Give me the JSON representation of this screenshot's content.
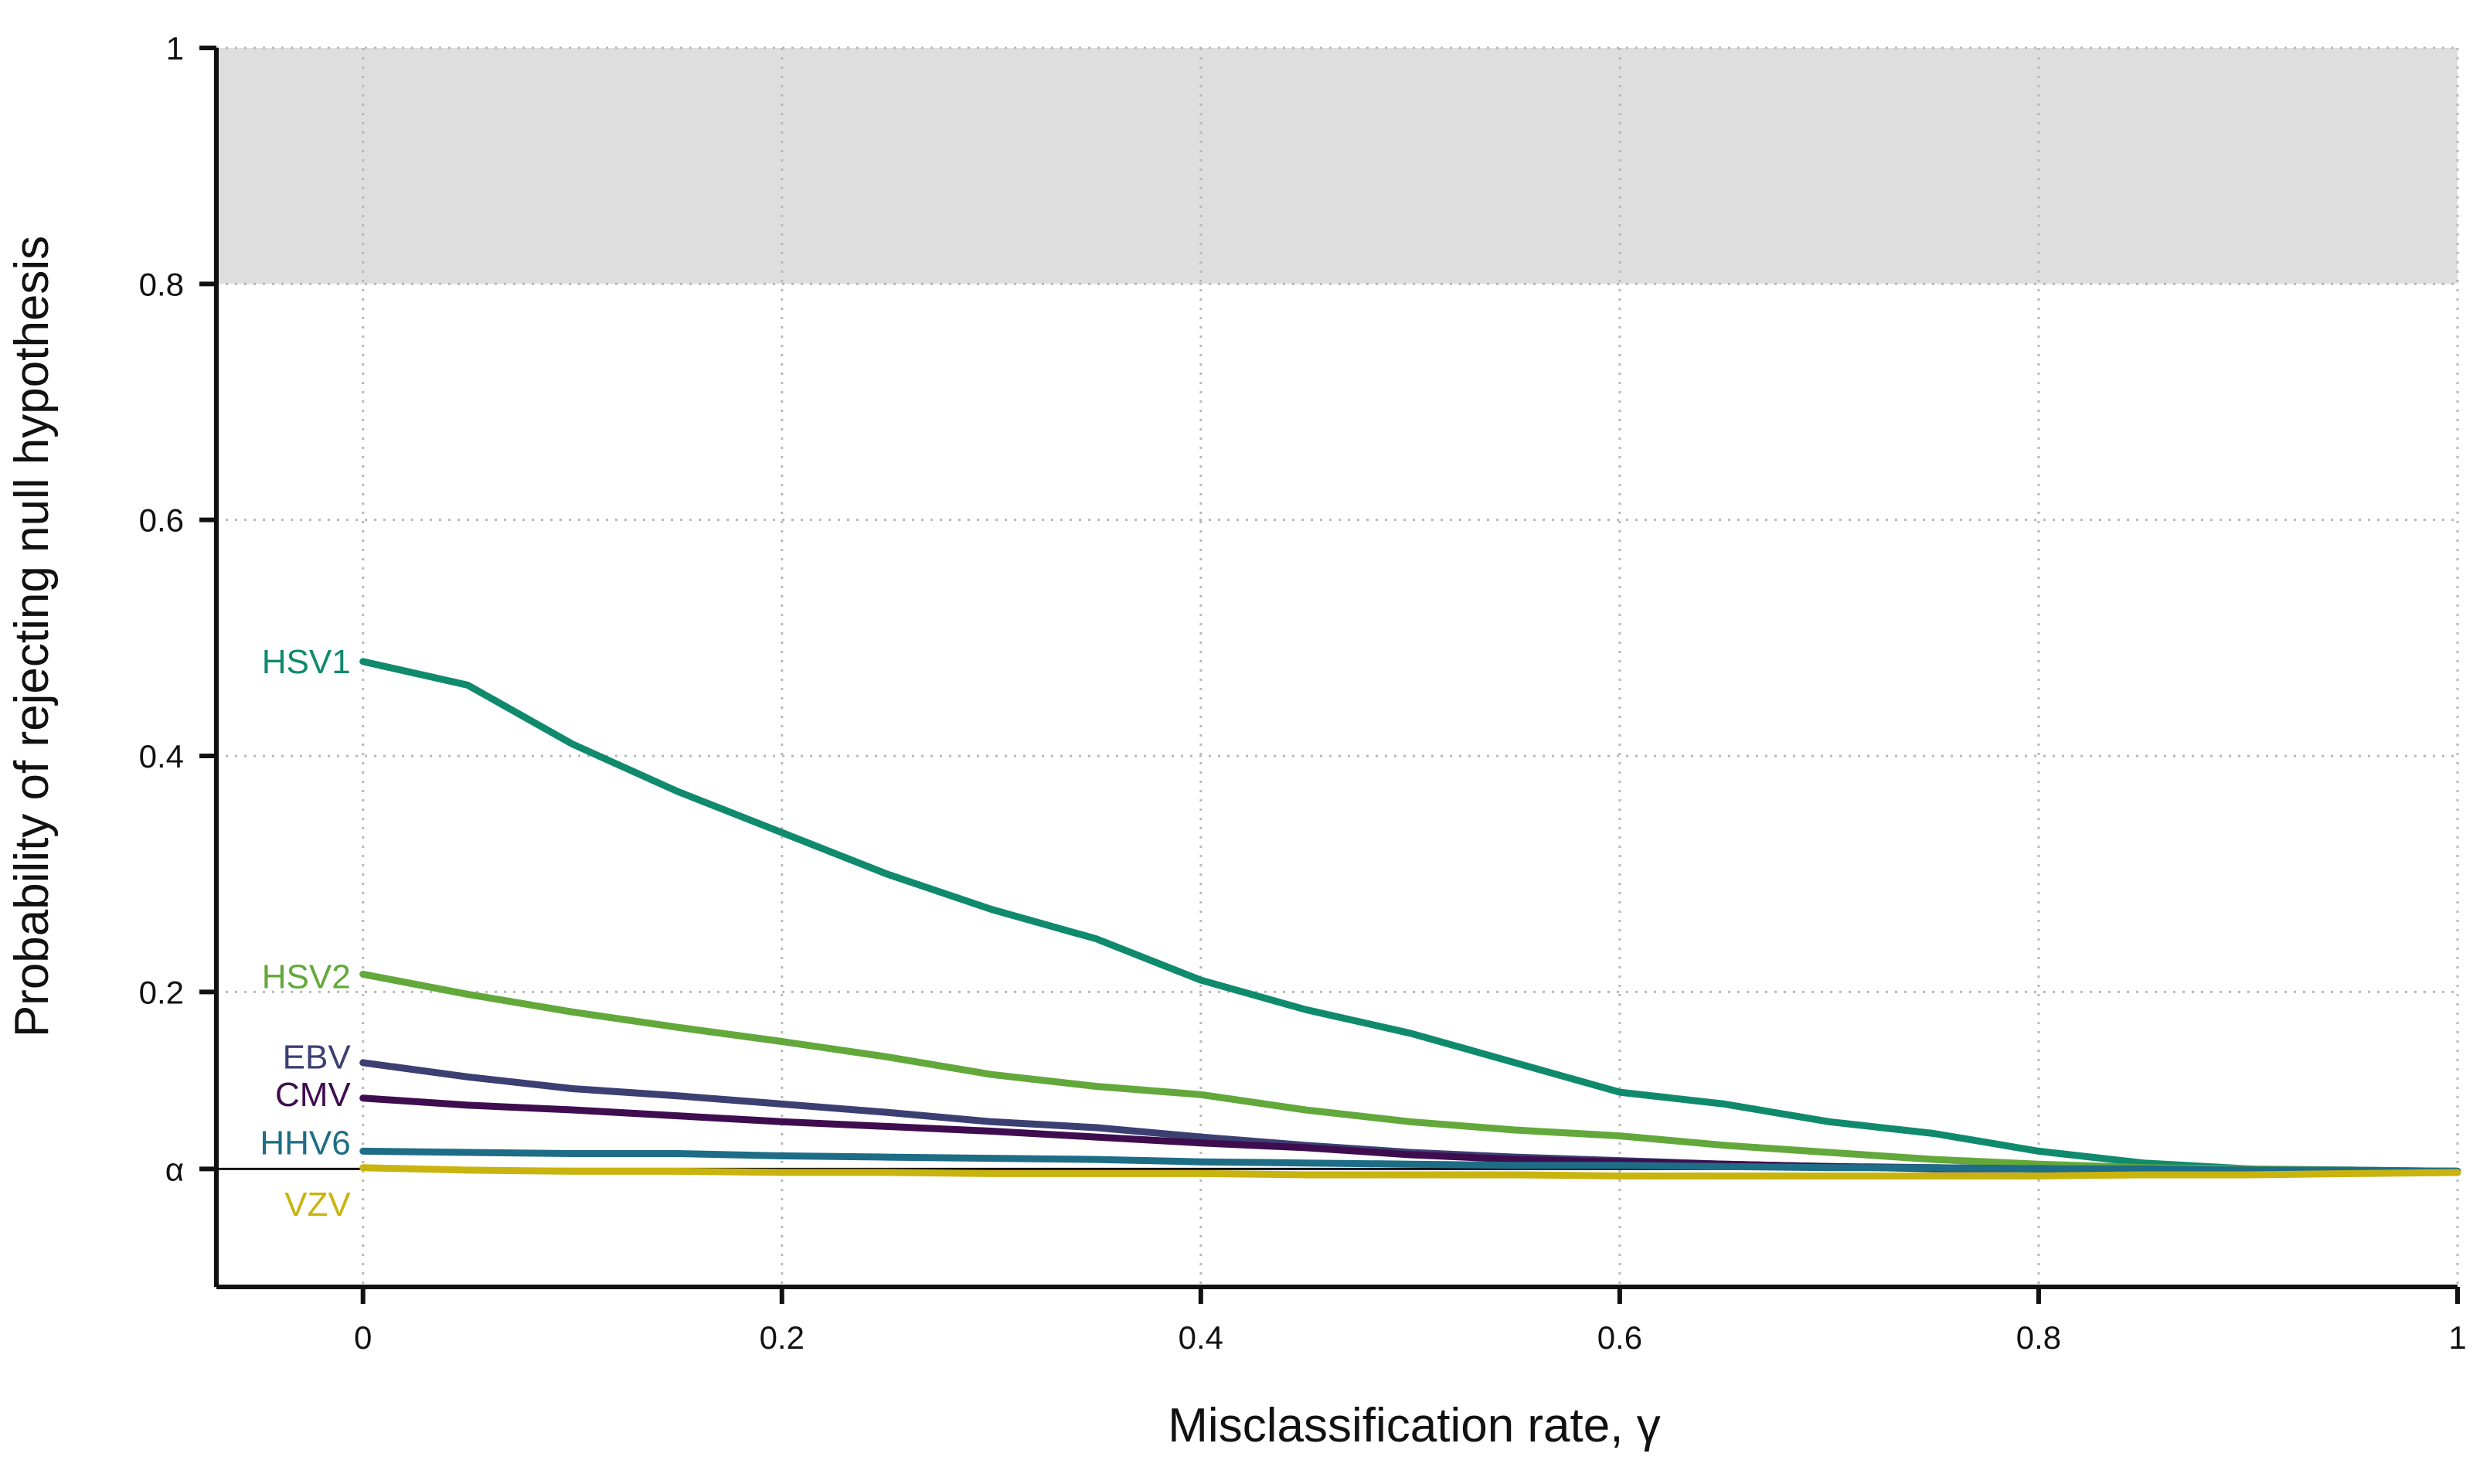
{
  "chart_data": {
    "type": "line",
    "title": "",
    "xlabel": "Misclassification rate, γ",
    "ylabel": "Probability of rejecting null hypothesis",
    "xlim": [
      -0.07,
      1.0
    ],
    "ylim": [
      -0.05,
      1.0
    ],
    "x_ticks": [
      0,
      0.2,
      0.4,
      0.6,
      0.8,
      1
    ],
    "x_tick_labels": [
      "0",
      "0.2",
      "0.4",
      "0.6",
      "0.8",
      "1"
    ],
    "y_ticks": [
      0,
      0.2,
      0.4,
      0.6,
      0.8,
      1
    ],
    "y_tick_labels": [
      "α",
      "0.2",
      "0.4",
      "0.6",
      "0.8",
      "1"
    ],
    "alpha_value": 0.05,
    "shaded_region": {
      "ymin": 0.8,
      "ymax": 1.0,
      "color": "#dedede"
    },
    "grid": true,
    "x": [
      0,
      0.05,
      0.1,
      0.15,
      0.2,
      0.25,
      0.3,
      0.35,
      0.4,
      0.45,
      0.5,
      0.55,
      0.6,
      0.65,
      0.7,
      0.75,
      0.8,
      0.85,
      0.9,
      0.95,
      1.0
    ],
    "series": [
      {
        "name": "HSV1",
        "color": "#0f8a6c",
        "label_y": 0.48,
        "values": [
          0.48,
          0.46,
          0.41,
          0.37,
          0.335,
          0.3,
          0.27,
          0.245,
          0.21,
          0.185,
          0.165,
          0.14,
          0.115,
          0.105,
          0.09,
          0.08,
          0.065,
          0.055,
          0.05,
          0.048,
          0.047
        ]
      },
      {
        "name": "HSV2",
        "color": "#62a83a",
        "label_y": 0.213,
        "values": [
          0.215,
          0.198,
          0.183,
          0.17,
          0.158,
          0.145,
          0.13,
          0.12,
          0.113,
          0.1,
          0.09,
          0.083,
          0.078,
          0.07,
          0.064,
          0.058,
          0.054,
          0.051,
          0.05,
          0.049,
          0.048
        ]
      },
      {
        "name": "EBV",
        "color": "#3c3f72",
        "label_y": 0.145,
        "values": [
          0.14,
          0.128,
          0.118,
          0.112,
          0.105,
          0.098,
          0.09,
          0.085,
          0.077,
          0.07,
          0.064,
          0.06,
          0.057,
          0.054,
          0.052,
          0.05,
          0.05,
          0.049,
          0.049,
          0.048,
          0.048
        ]
      },
      {
        "name": "CMV",
        "color": "#3f0d4f",
        "label_y": 0.113,
        "values": [
          0.11,
          0.104,
          0.1,
          0.095,
          0.09,
          0.086,
          0.082,
          0.077,
          0.072,
          0.068,
          0.062,
          0.058,
          0.056,
          0.054,
          0.052,
          0.051,
          0.05,
          0.049,
          0.049,
          0.048,
          0.048
        ]
      },
      {
        "name": "HHV6",
        "color": "#1e6d86",
        "label_y": 0.072,
        "values": [
          0.065,
          0.064,
          0.063,
          0.063,
          0.061,
          0.06,
          0.059,
          0.058,
          0.056,
          0.055,
          0.054,
          0.053,
          0.053,
          0.052,
          0.051,
          0.051,
          0.05,
          0.05,
          0.049,
          0.049,
          0.048
        ]
      },
      {
        "name": "VZV",
        "color": "#c9b40f",
        "label_y": 0.02,
        "values": [
          0.051,
          0.049,
          0.048,
          0.048,
          0.047,
          0.047,
          0.046,
          0.046,
          0.046,
          0.045,
          0.045,
          0.045,
          0.044,
          0.044,
          0.044,
          0.044,
          0.044,
          0.045,
          0.045,
          0.046,
          0.047
        ]
      }
    ]
  }
}
